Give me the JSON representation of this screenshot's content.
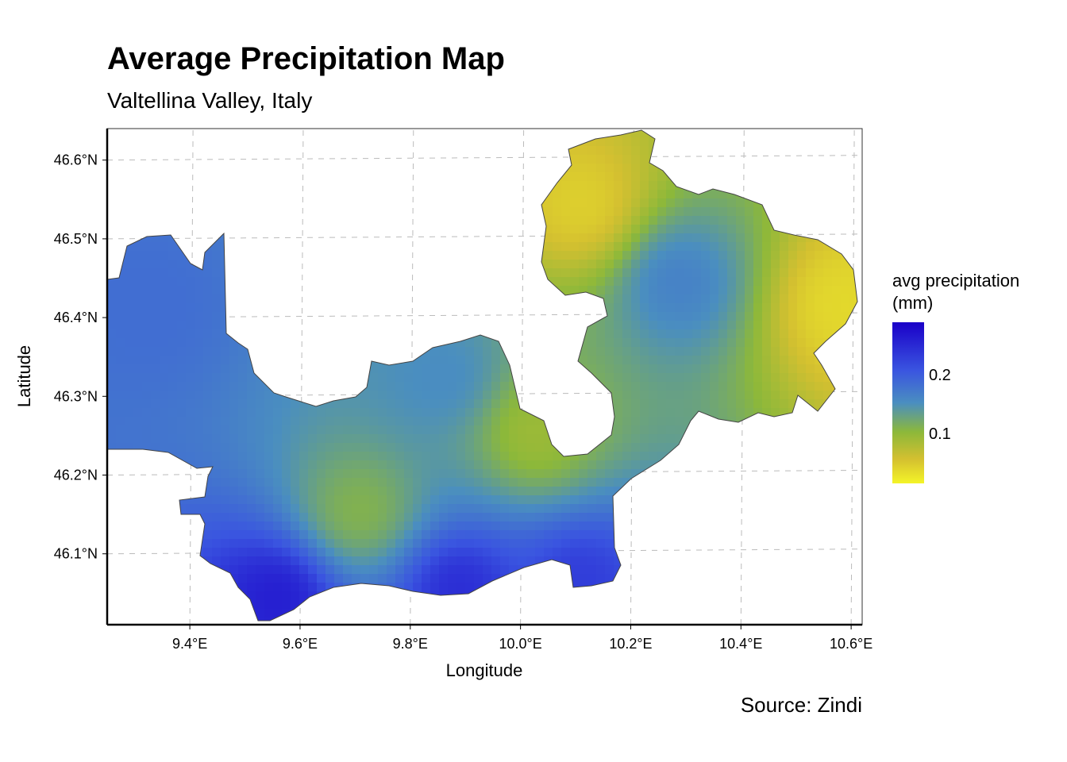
{
  "chart_data": {
    "type": "heatmap",
    "title": "Average Precipitation Map",
    "subtitle": "Valtellina Valley, Italy",
    "caption": "Source: Zindi",
    "xlabel": "Longitude",
    "ylabel": "Latitude",
    "x_ticks": [
      "9.4°E",
      "9.6°E",
      "9.8°E",
      "10.0°E",
      "10.2°E",
      "10.4°E",
      "10.6°E"
    ],
    "y_ticks": [
      "46.1°N",
      "46.2°N",
      "46.3°N",
      "46.4°N",
      "46.5°N",
      "46.6°N"
    ],
    "xlim": [
      9.25,
      10.62
    ],
    "ylim": [
      46.01,
      46.64
    ],
    "grid": true,
    "legend": {
      "title_line1": "avg precipitation",
      "title_line2": "(mm)",
      "ticks": [
        "0.2",
        "0.1"
      ],
      "placement": "right",
      "colors": [
        "#1a00c8",
        "#3a55e0",
        "#4a8ec0",
        "#8cb83a",
        "#d4c030",
        "#f4f428"
      ]
    },
    "hotspots": [
      {
        "lon": 9.32,
        "lat": 46.42,
        "value": 0.2
      },
      {
        "lon": 9.55,
        "lat": 46.05,
        "value": 0.26
      },
      {
        "lon": 9.88,
        "lat": 46.06,
        "value": 0.25
      },
      {
        "lon": 10.1,
        "lat": 46.07,
        "value": 0.24
      },
      {
        "lon": 9.7,
        "lat": 46.16,
        "value": 0.12
      },
      {
        "lon": 10.02,
        "lat": 46.26,
        "value": 0.1
      },
      {
        "lon": 10.28,
        "lat": 46.45,
        "value": 0.18
      },
      {
        "lon": 10.1,
        "lat": 46.55,
        "value": 0.04
      },
      {
        "lon": 10.58,
        "lat": 46.42,
        "value": 0.03
      },
      {
        "lon": 9.85,
        "lat": 46.33,
        "value": 0.17
      }
    ]
  }
}
